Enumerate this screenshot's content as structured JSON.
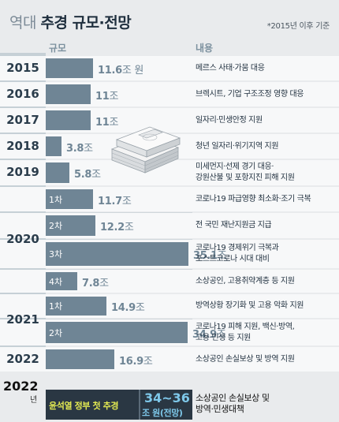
{
  "header": {
    "title_prefix": "역대",
    "title_main": "추경 규모·전망",
    "note": "*2015년 이후 기준",
    "col_scale": "규모",
    "col_content": "내용"
  },
  "chart_data": {
    "type": "bar",
    "orientation": "horizontal",
    "unit": "조 원",
    "rows": [
      {
        "year": "2015",
        "sub": "",
        "value": 11.6,
        "label": "11.6",
        "unit": "조 원",
        "desc": "메르스 사태·가뭄 대응"
      },
      {
        "year": "2016",
        "sub": "",
        "value": 11,
        "label": "11",
        "unit": "조",
        "desc": "브렉시트, 기업 구조조정 영향 대응"
      },
      {
        "year": "2017",
        "sub": "",
        "value": 11,
        "label": "11",
        "unit": "조",
        "desc": "일자리·민생안정 지원"
      },
      {
        "year": "2018",
        "sub": "",
        "value": 3.8,
        "label": "3.8",
        "unit": "조",
        "desc": "청년 일자리·위기지역 지원"
      },
      {
        "year": "2019",
        "sub": "",
        "value": 5.8,
        "label": "5.8",
        "unit": "조",
        "desc": "미세먼지·선제 경기 대응·\n강원산불 및 포항지진 피해 지원"
      },
      {
        "year": "2020",
        "sub": "1차",
        "value": 11.7,
        "label": "11.7",
        "unit": "조",
        "desc": "코로나19 파급영향 최소화·조기 극복"
      },
      {
        "year": "2020",
        "sub": "2차",
        "value": 12.2,
        "label": "12.2",
        "unit": "조",
        "desc": "전 국민 재난지원금 지급"
      },
      {
        "year": "2020",
        "sub": "3차",
        "value": 35.1,
        "label": "35.1",
        "unit": "조",
        "desc": "코로나19 경제위기 극복과\n포스트코로나 시대 대비"
      },
      {
        "year": "2020",
        "sub": "4차",
        "value": 7.8,
        "label": "7.8",
        "unit": "조",
        "desc": "소상공인, 고용취약계층 등 지원"
      },
      {
        "year": "2021",
        "sub": "1차",
        "value": 14.9,
        "label": "14.9",
        "unit": "조",
        "desc": "방역상황 장기화 및 고용 악화 지원"
      },
      {
        "year": "2021",
        "sub": "2차",
        "value": 34.9,
        "label": "34.9",
        "unit": "조",
        "desc": "코로나19 피해 지원, 백신·방역,\n고용·민생 등 지원"
      },
      {
        "year": "2022",
        "sub": "",
        "value": 16.9,
        "label": "16.9",
        "unit": "조",
        "desc": "소상공인 손실보상 및 방역 지원"
      }
    ],
    "projection": {
      "year": "2022",
      "year_suffix": "년",
      "label": "윤석열 정부 첫 추경",
      "range": "34~36",
      "unit": "조 원(전망)",
      "desc": "소상공인 손실보상 및\n방역·민생대책"
    }
  },
  "colors": {
    "bar": "#6f8595",
    "band": "#f7f8f9",
    "year_col": "#c6d0d6",
    "highlight_text": "#e3ea52",
    "projection_num": "#7ec8ea"
  },
  "decoration": {
    "image": "money-stack-icon"
  }
}
